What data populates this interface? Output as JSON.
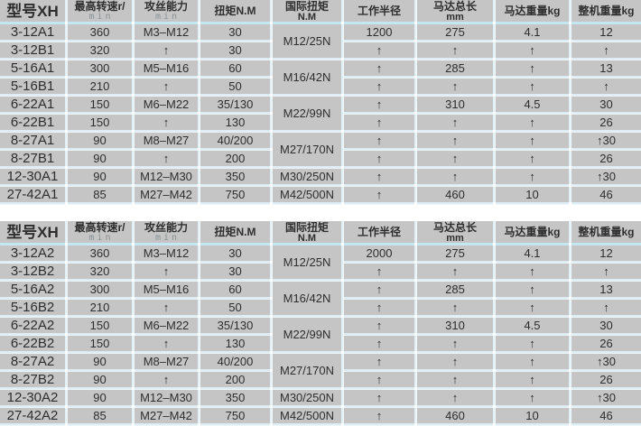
{
  "colors": {
    "cell_bg": "#c5c5c5",
    "header_band_blue": "#c4e7f3",
    "grid_line_blue": "#dcedf6",
    "grid_vline_blue": "#e2f1f8",
    "text": "#2e2e2e",
    "background": "#ffffff"
  },
  "columns": [
    "model",
    "speed",
    "capacity",
    "torque",
    "intl",
    "radius",
    "length",
    "motor_kg",
    "total_kg"
  ],
  "headers": [
    {
      "key": "model",
      "line1": "型号XH",
      "line2": "",
      "style": "model"
    },
    {
      "key": "speed",
      "line1": "最高转速r/",
      "line2": "min",
      "style": "dotted"
    },
    {
      "key": "capacity",
      "line1": "攻丝能力",
      "line2": "min",
      "style": "dotted"
    },
    {
      "key": "torque",
      "line1": "扭矩N.M",
      "line2": "",
      "style": "plain"
    },
    {
      "key": "intl",
      "line1": "国际扭矩",
      "line2": "N.M",
      "style": "plain"
    },
    {
      "key": "radius",
      "line1": "工作半径",
      "line2": "",
      "style": "plain"
    },
    {
      "key": "length",
      "line1": "马达总长",
      "line2": "mm",
      "style": "plain"
    },
    {
      "key": "motor_kg",
      "line1": "马达重量kg",
      "line2": "",
      "style": "plain"
    },
    {
      "key": "total_kg",
      "line1": "整机重量kg",
      "line2": "",
      "style": "plain"
    }
  ],
  "tables": [
    {
      "name": "series-1",
      "rows": [
        {
          "model": "3-12A1",
          "speed": "360",
          "capacity": "M3–M12",
          "torque": "30",
          "intl": "M12/25N",
          "intl_span": 2,
          "radius": "1200",
          "length": "275",
          "motor_kg": "4.1",
          "total_kg": "12"
        },
        {
          "model": "3-12B1",
          "speed": "320",
          "capacity": "↑",
          "torque": "30",
          "intl": null,
          "intl_span": 0,
          "radius": "↑",
          "length": "↑",
          "motor_kg": "↑",
          "total_kg": "↑"
        },
        {
          "model": "5-16A1",
          "speed": "300",
          "capacity": "M5–M16",
          "torque": "60",
          "intl": "M16/42N",
          "intl_span": 2,
          "radius": "↑",
          "length": "285",
          "motor_kg": "↑",
          "total_kg": "13"
        },
        {
          "model": "5-16B1",
          "speed": "210",
          "capacity": "↑",
          "torque": "50",
          "intl": null,
          "intl_span": 0,
          "radius": "↑",
          "length": "↑",
          "motor_kg": "↑",
          "total_kg": "↑"
        },
        {
          "model": "6-22A1",
          "speed": "150",
          "capacity": "M6–M22",
          "torque": "35/130",
          "intl": "M22/99N",
          "intl_span": 2,
          "radius": "↑",
          "length": "310",
          "motor_kg": "4.5",
          "total_kg": "30"
        },
        {
          "model": "6-22B1",
          "speed": "150",
          "capacity": "↑",
          "torque": "130",
          "intl": null,
          "intl_span": 0,
          "radius": "↑",
          "length": "↑",
          "motor_kg": "↑",
          "total_kg": "26"
        },
        {
          "model": "8-27A1",
          "speed": "90",
          "capacity": "M8–M27",
          "torque": "40/200",
          "intl": "M27/170N",
          "intl_span": 2,
          "radius": "↑",
          "length": "↑",
          "motor_kg": "↑",
          "total_kg": "↑30"
        },
        {
          "model": "8-27B1",
          "speed": "90",
          "capacity": "↑",
          "torque": "200",
          "intl": null,
          "intl_span": 0,
          "radius": "↑",
          "length": "↑",
          "motor_kg": "↑",
          "total_kg": "26"
        },
        {
          "model": "12-30A1",
          "speed": "90",
          "capacity": "M12–M30",
          "torque": "350",
          "intl": "M30/250N",
          "intl_span": 1,
          "radius": "↑",
          "length": "↑",
          "motor_kg": "↑",
          "total_kg": "↑30"
        },
        {
          "model": "27-42A1",
          "speed": "85",
          "capacity": "M27–M42",
          "torque": "750",
          "intl": "M42/500N",
          "intl_span": 1,
          "radius": "↑",
          "length": "460",
          "motor_kg": "10",
          "total_kg": "46"
        }
      ]
    },
    {
      "name": "series-2",
      "rows": [
        {
          "model": "3-12A2",
          "speed": "360",
          "capacity": "M3–M12",
          "torque": "30",
          "intl": "M12/25N",
          "intl_span": 2,
          "radius": "2000",
          "length": "275",
          "motor_kg": "4.1",
          "total_kg": "12"
        },
        {
          "model": "3-12B2",
          "speed": "320",
          "capacity": "↑",
          "torque": "30",
          "intl": null,
          "intl_span": 0,
          "radius": "↑",
          "length": "↑",
          "motor_kg": "↑",
          "total_kg": "↑"
        },
        {
          "model": "5-16A2",
          "speed": "300",
          "capacity": "M5–M16",
          "torque": "60",
          "intl": "M16/42N",
          "intl_span": 2,
          "radius": "↑",
          "length": "285",
          "motor_kg": "↑",
          "total_kg": "13"
        },
        {
          "model": "5-16B2",
          "speed": "210",
          "capacity": "↑",
          "torque": "50",
          "intl": null,
          "intl_span": 0,
          "radius": "↑",
          "length": "↑",
          "motor_kg": "↑",
          "total_kg": "↑"
        },
        {
          "model": "6-22A2",
          "speed": "150",
          "capacity": "M6–M22",
          "torque": "35/130",
          "intl": "M22/99N",
          "intl_span": 2,
          "radius": "↑",
          "length": "310",
          "motor_kg": "4.5",
          "total_kg": "30"
        },
        {
          "model": "6-22B2",
          "speed": "150",
          "capacity": "↑",
          "torque": "130",
          "intl": null,
          "intl_span": 0,
          "radius": "↑",
          "length": "↑",
          "motor_kg": "↑",
          "total_kg": "26"
        },
        {
          "model": "8-27A2",
          "speed": "90",
          "capacity": "M8–M27",
          "torque": "40/200",
          "intl": "M27/170N",
          "intl_span": 2,
          "radius": "↑",
          "length": "↑",
          "motor_kg": "↑",
          "total_kg": "↑30"
        },
        {
          "model": "8-27B2",
          "speed": "90",
          "capacity": "↑",
          "torque": "200",
          "intl": null,
          "intl_span": 0,
          "radius": "↑",
          "length": "↑",
          "motor_kg": "↑",
          "total_kg": "26"
        },
        {
          "model": "12-30A2",
          "speed": "90",
          "capacity": "M12–M30",
          "torque": "350",
          "intl": "M30/250N",
          "intl_span": 1,
          "radius": "↑",
          "length": "↑",
          "motor_kg": "↑",
          "total_kg": "↑30"
        },
        {
          "model": "27-42A2",
          "speed": "85",
          "capacity": "M27–M42",
          "torque": "750",
          "intl": "M42/500N",
          "intl_span": 1,
          "radius": "↑",
          "length": "460",
          "motor_kg": "10",
          "total_kg": "46"
        }
      ]
    }
  ]
}
